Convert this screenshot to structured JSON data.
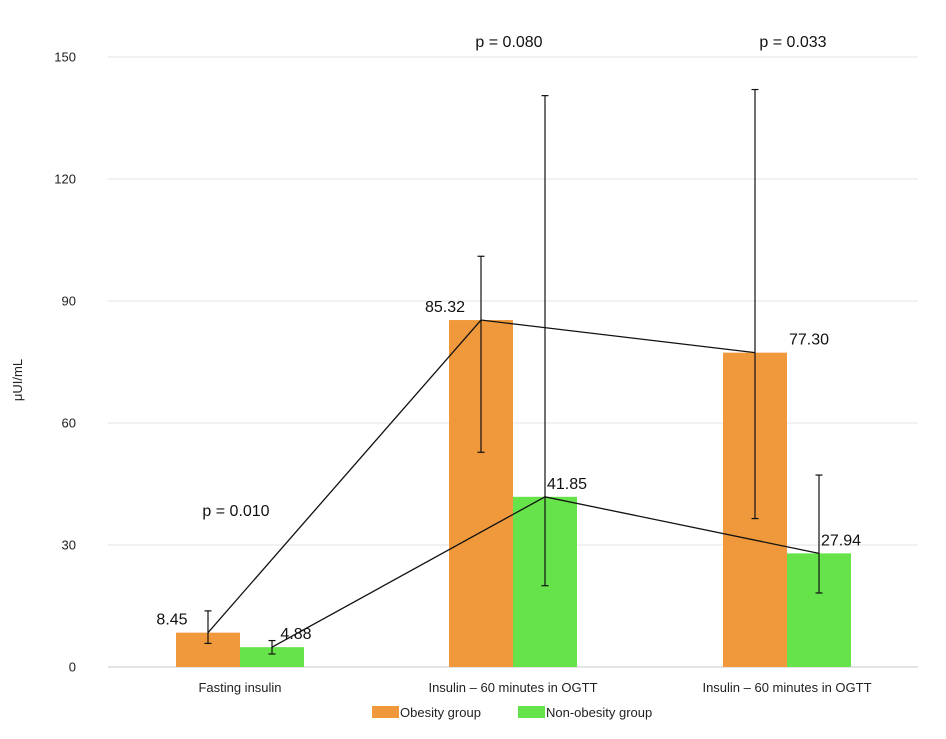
{
  "chart_data": {
    "type": "bar",
    "ylabel": "μUI/mL",
    "ylim": [
      0,
      150
    ],
    "yticks": [
      "0",
      "30",
      "60",
      "90",
      "120",
      "150"
    ],
    "grid": true,
    "legend_position": "bottom",
    "categories": [
      "Fasting  insulin",
      "Insulin – 60 minutes in OGTT",
      "Insulin – 60 minutes in OGTT"
    ],
    "series": [
      {
        "name": "Obesity group",
        "color": "#F0993C",
        "values": [
          8.45,
          85.32,
          77.3
        ],
        "labels": [
          "8.45",
          "85.32",
          "77.30"
        ],
        "error_low": [
          5.8,
          52.8,
          36.5
        ],
        "error_high": [
          13.8,
          101.0,
          142.0
        ]
      },
      {
        "name": "Non-obesity group",
        "color": "#66E24A",
        "values": [
          4.88,
          41.85,
          27.94
        ],
        "labels": [
          "4.88",
          "41.85",
          "27.94"
        ],
        "error_low": [
          3.2,
          20.0,
          18.2
        ],
        "error_high": [
          6.5,
          140.5,
          47.2
        ]
      }
    ],
    "annotations": [
      "p = 0.010",
      "p = 0.080",
      "p = 0.033"
    ]
  }
}
